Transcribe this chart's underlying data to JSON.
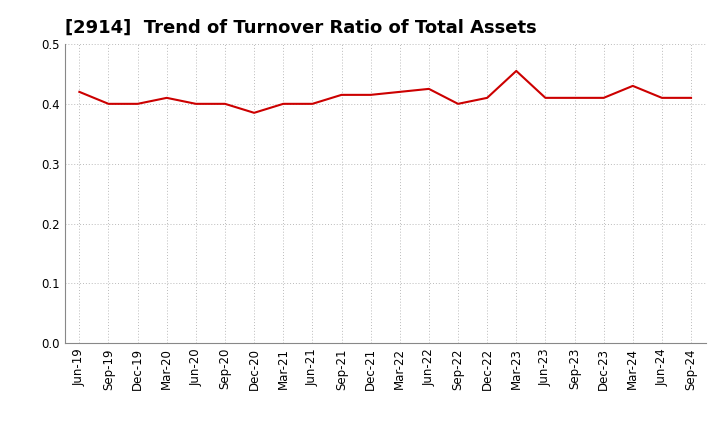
{
  "title": "[2914]  Trend of Turnover Ratio of Total Assets",
  "x_labels": [
    "Jun-19",
    "Sep-19",
    "Dec-19",
    "Mar-20",
    "Jun-20",
    "Sep-20",
    "Dec-20",
    "Mar-21",
    "Jun-21",
    "Sep-21",
    "Dec-21",
    "Mar-22",
    "Jun-22",
    "Sep-22",
    "Dec-22",
    "Mar-23",
    "Jun-23",
    "Sep-23",
    "Dec-23",
    "Mar-24",
    "Jun-24",
    "Sep-24"
  ],
  "y_values": [
    0.42,
    0.4,
    0.4,
    0.41,
    0.4,
    0.4,
    0.385,
    0.4,
    0.4,
    0.415,
    0.415,
    0.42,
    0.425,
    0.4,
    0.41,
    0.455,
    0.41,
    0.41,
    0.41,
    0.43,
    0.41,
    0.41
  ],
  "line_color": "#cc0000",
  "line_width": 1.5,
  "ylim": [
    0.0,
    0.5
  ],
  "yticks": [
    0.0,
    0.1,
    0.2,
    0.3,
    0.4,
    0.5
  ],
  "background_color": "#ffffff",
  "plot_bg_color": "#ffffff",
  "grid_color": "#bbbbbb",
  "title_fontsize": 13,
  "tick_fontsize": 8.5
}
